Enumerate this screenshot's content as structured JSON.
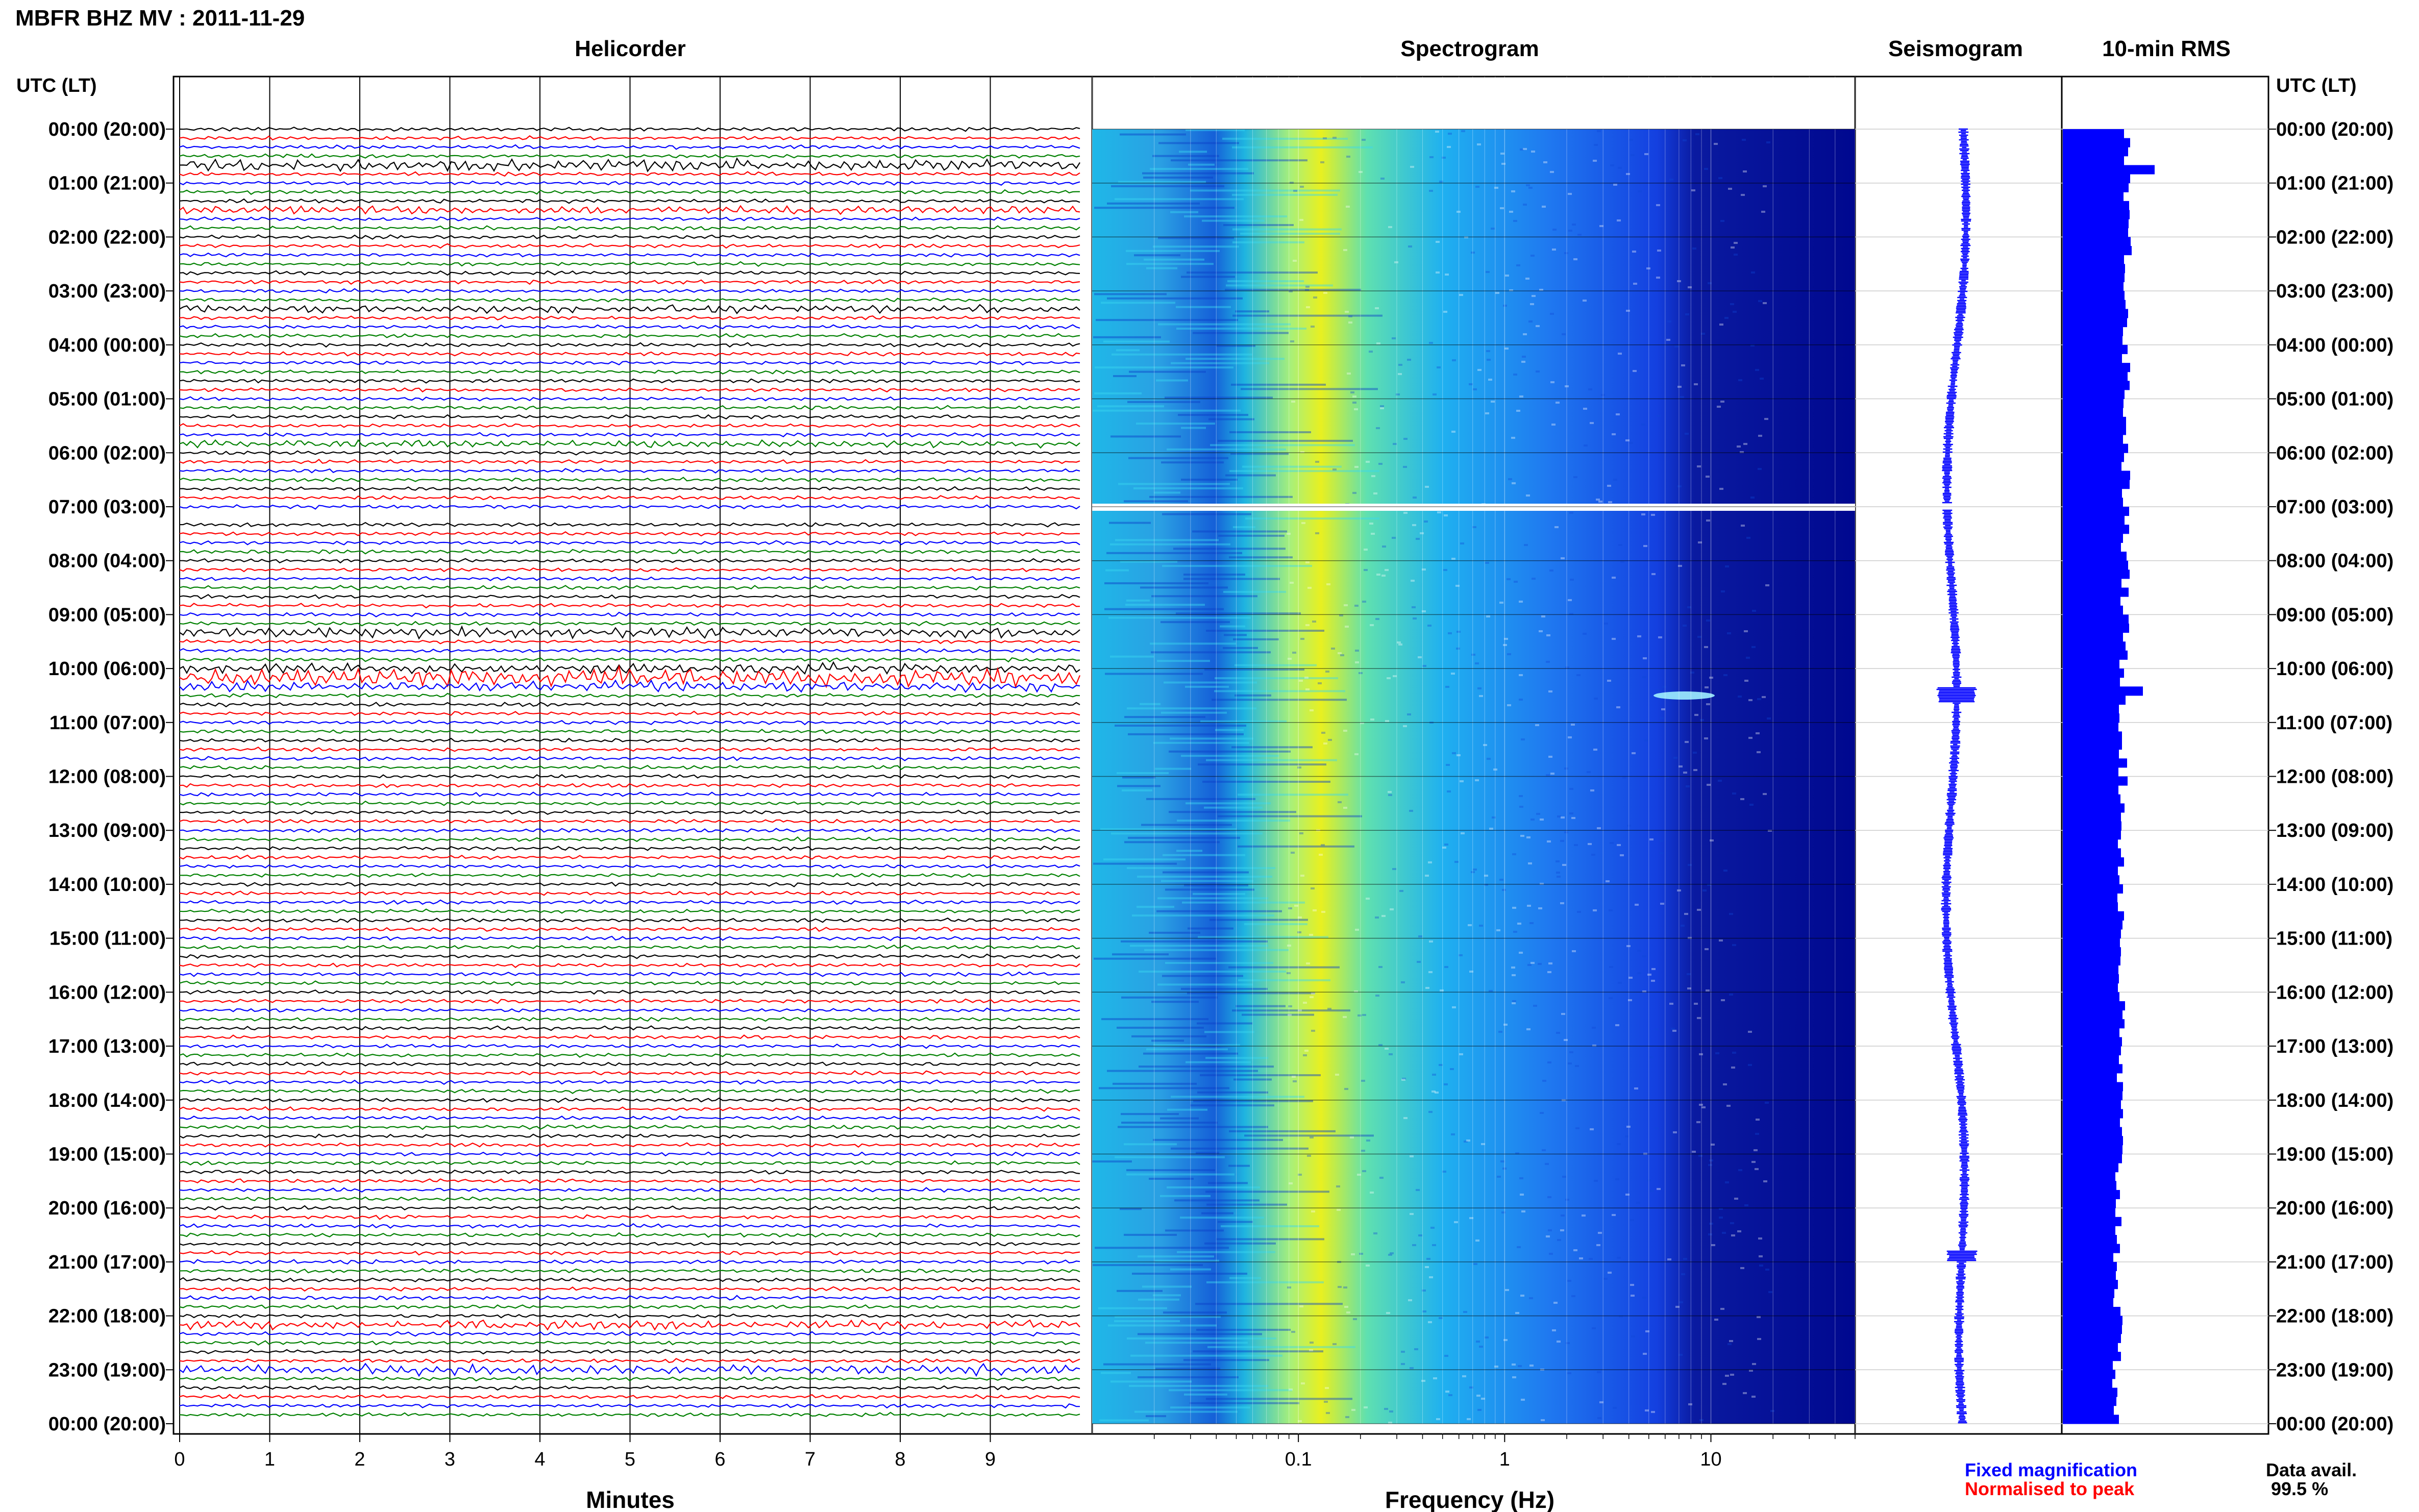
{
  "header": {
    "station_title": "MBFR BHZ MV : 2011-11-29",
    "time_axis_label_left": "UTC (LT)",
    "time_axis_label_right": "UTC (LT)"
  },
  "panels": {
    "helicorder": {
      "title": "Helicorder",
      "xlabel": "Minutes"
    },
    "spectrogram": {
      "title": "Spectrogram",
      "xlabel": "Frequency (Hz)"
    },
    "seismogram": {
      "title": "Seismogram"
    },
    "rms": {
      "title": "10-min RMS"
    }
  },
  "legend": {
    "fixed": "Fixed magnification",
    "normalised": "Normalised to peak",
    "fixed_color": "#0000ff",
    "normalised_color": "#ff0000"
  },
  "availability": {
    "label": "Data avail.",
    "value": "99.5 %"
  },
  "colors": {
    "trace_cycle": [
      "#000000",
      "#ff0000",
      "#0000ff",
      "#008000"
    ],
    "rms_bar": "#0000ff",
    "seis_trace": "#0000ff",
    "spec_low": "#00008b",
    "spec_mid": "#1fd8e0",
    "spec_high": "#e8f020"
  },
  "chart_data": [
    {
      "type": "line",
      "name": "helicorder",
      "title": "Helicorder",
      "xlabel": "Minutes",
      "xlim": [
        0,
        10
      ],
      "x_ticks": [
        0,
        1,
        2,
        3,
        4,
        5,
        6,
        7,
        8,
        9
      ],
      "y_ticks": [
        "00:00 (20:00)",
        "01:00 (21:00)",
        "02:00 (22:00)",
        "03:00 (23:00)",
        "04:00 (00:00)",
        "05:00 (01:00)",
        "06:00 (02:00)",
        "07:00 (03:00)",
        "08:00 (04:00)",
        "09:00 (05:00)",
        "10:00 (06:00)",
        "11:00 (07:00)",
        "12:00 (08:00)",
        "13:00 (09:00)",
        "14:00 (10:00)",
        "15:00 (11:00)",
        "16:00 (12:00)",
        "17:00 (13:00)",
        "18:00 (14:00)",
        "19:00 (15:00)",
        "20:00 (16:00)",
        "21:00 (17:00)",
        "22:00 (18:00)",
        "23:00 (19:00)",
        "00:00 (20:00)"
      ],
      "traces": 144
    },
    {
      "type": "heatmap",
      "name": "spectrogram",
      "title": "Spectrogram",
      "xlabel": "Frequency (Hz)",
      "x_scale": "log",
      "xlim": [
        0.01,
        50
      ],
      "x_ticks": [
        0.1,
        1,
        10
      ],
      "x_tick_labels": [
        "0.1",
        "1",
        "10"
      ]
    },
    {
      "type": "line",
      "name": "seismogram",
      "title": "Seismogram"
    },
    {
      "type": "bar",
      "name": "rms",
      "title": "10-min RMS",
      "orientation": "horizontal"
    }
  ]
}
